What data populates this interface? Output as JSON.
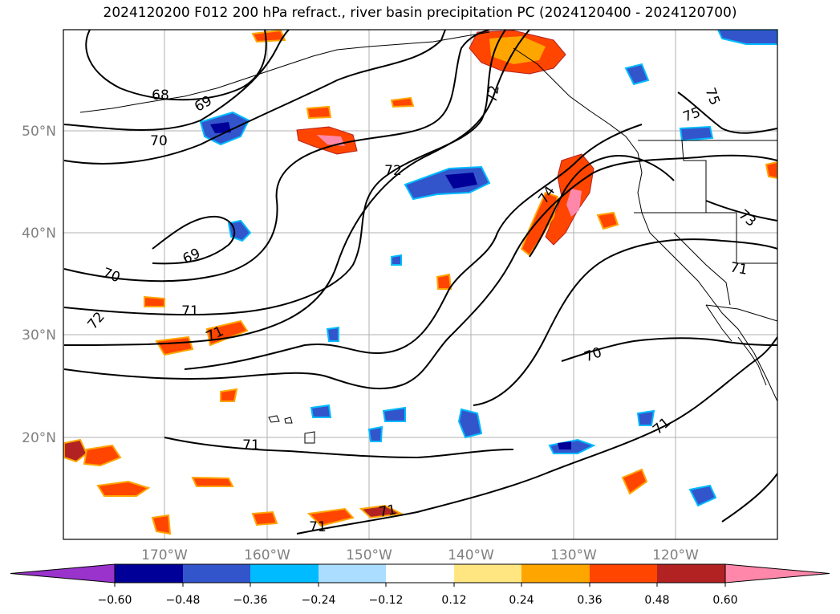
{
  "title": "2024120200 F012 200 hPa refract., river basin precipitation PC (2024120400 - 2024120700)",
  "lat_labels": [
    "50°N",
    "40°N",
    "30°N",
    "20°N"
  ],
  "lon_labels": [
    "170°W",
    "160°W",
    "150°W",
    "140°W",
    "130°W",
    "120°W"
  ],
  "contour_labels": [
    "68",
    "69",
    "70",
    "69",
    "70",
    "71",
    "72",
    "72",
    "71",
    "72",
    "74",
    "75",
    "75",
    "73",
    "71",
    "70",
    "71",
    "71",
    "71",
    "71"
  ],
  "colorbar": {
    "ticks": [
      "−0.60",
      "−0.48",
      "−0.36",
      "−0.24",
      "−0.12",
      "0.12",
      "0.24",
      "0.36",
      "0.48",
      "0.60"
    ],
    "colors": [
      "#9933cc",
      "#000099",
      "#3355cc",
      "#00bbff",
      "#aaddff",
      "#ffffff",
      "#ffe680",
      "#ffa500",
      "#ff4500",
      "#b22222",
      "#ff88aa"
    ]
  },
  "map_colors": {
    "neg_strong": "#000099",
    "neg_mid": "#3355cc",
    "neg_light": "#00bbff",
    "pos_light": "#ffe680",
    "pos_mid": "#ffa500",
    "pos_strong": "#ff4500",
    "pos_dark": "#b22222",
    "pos_pink": "#ff88aa"
  }
}
